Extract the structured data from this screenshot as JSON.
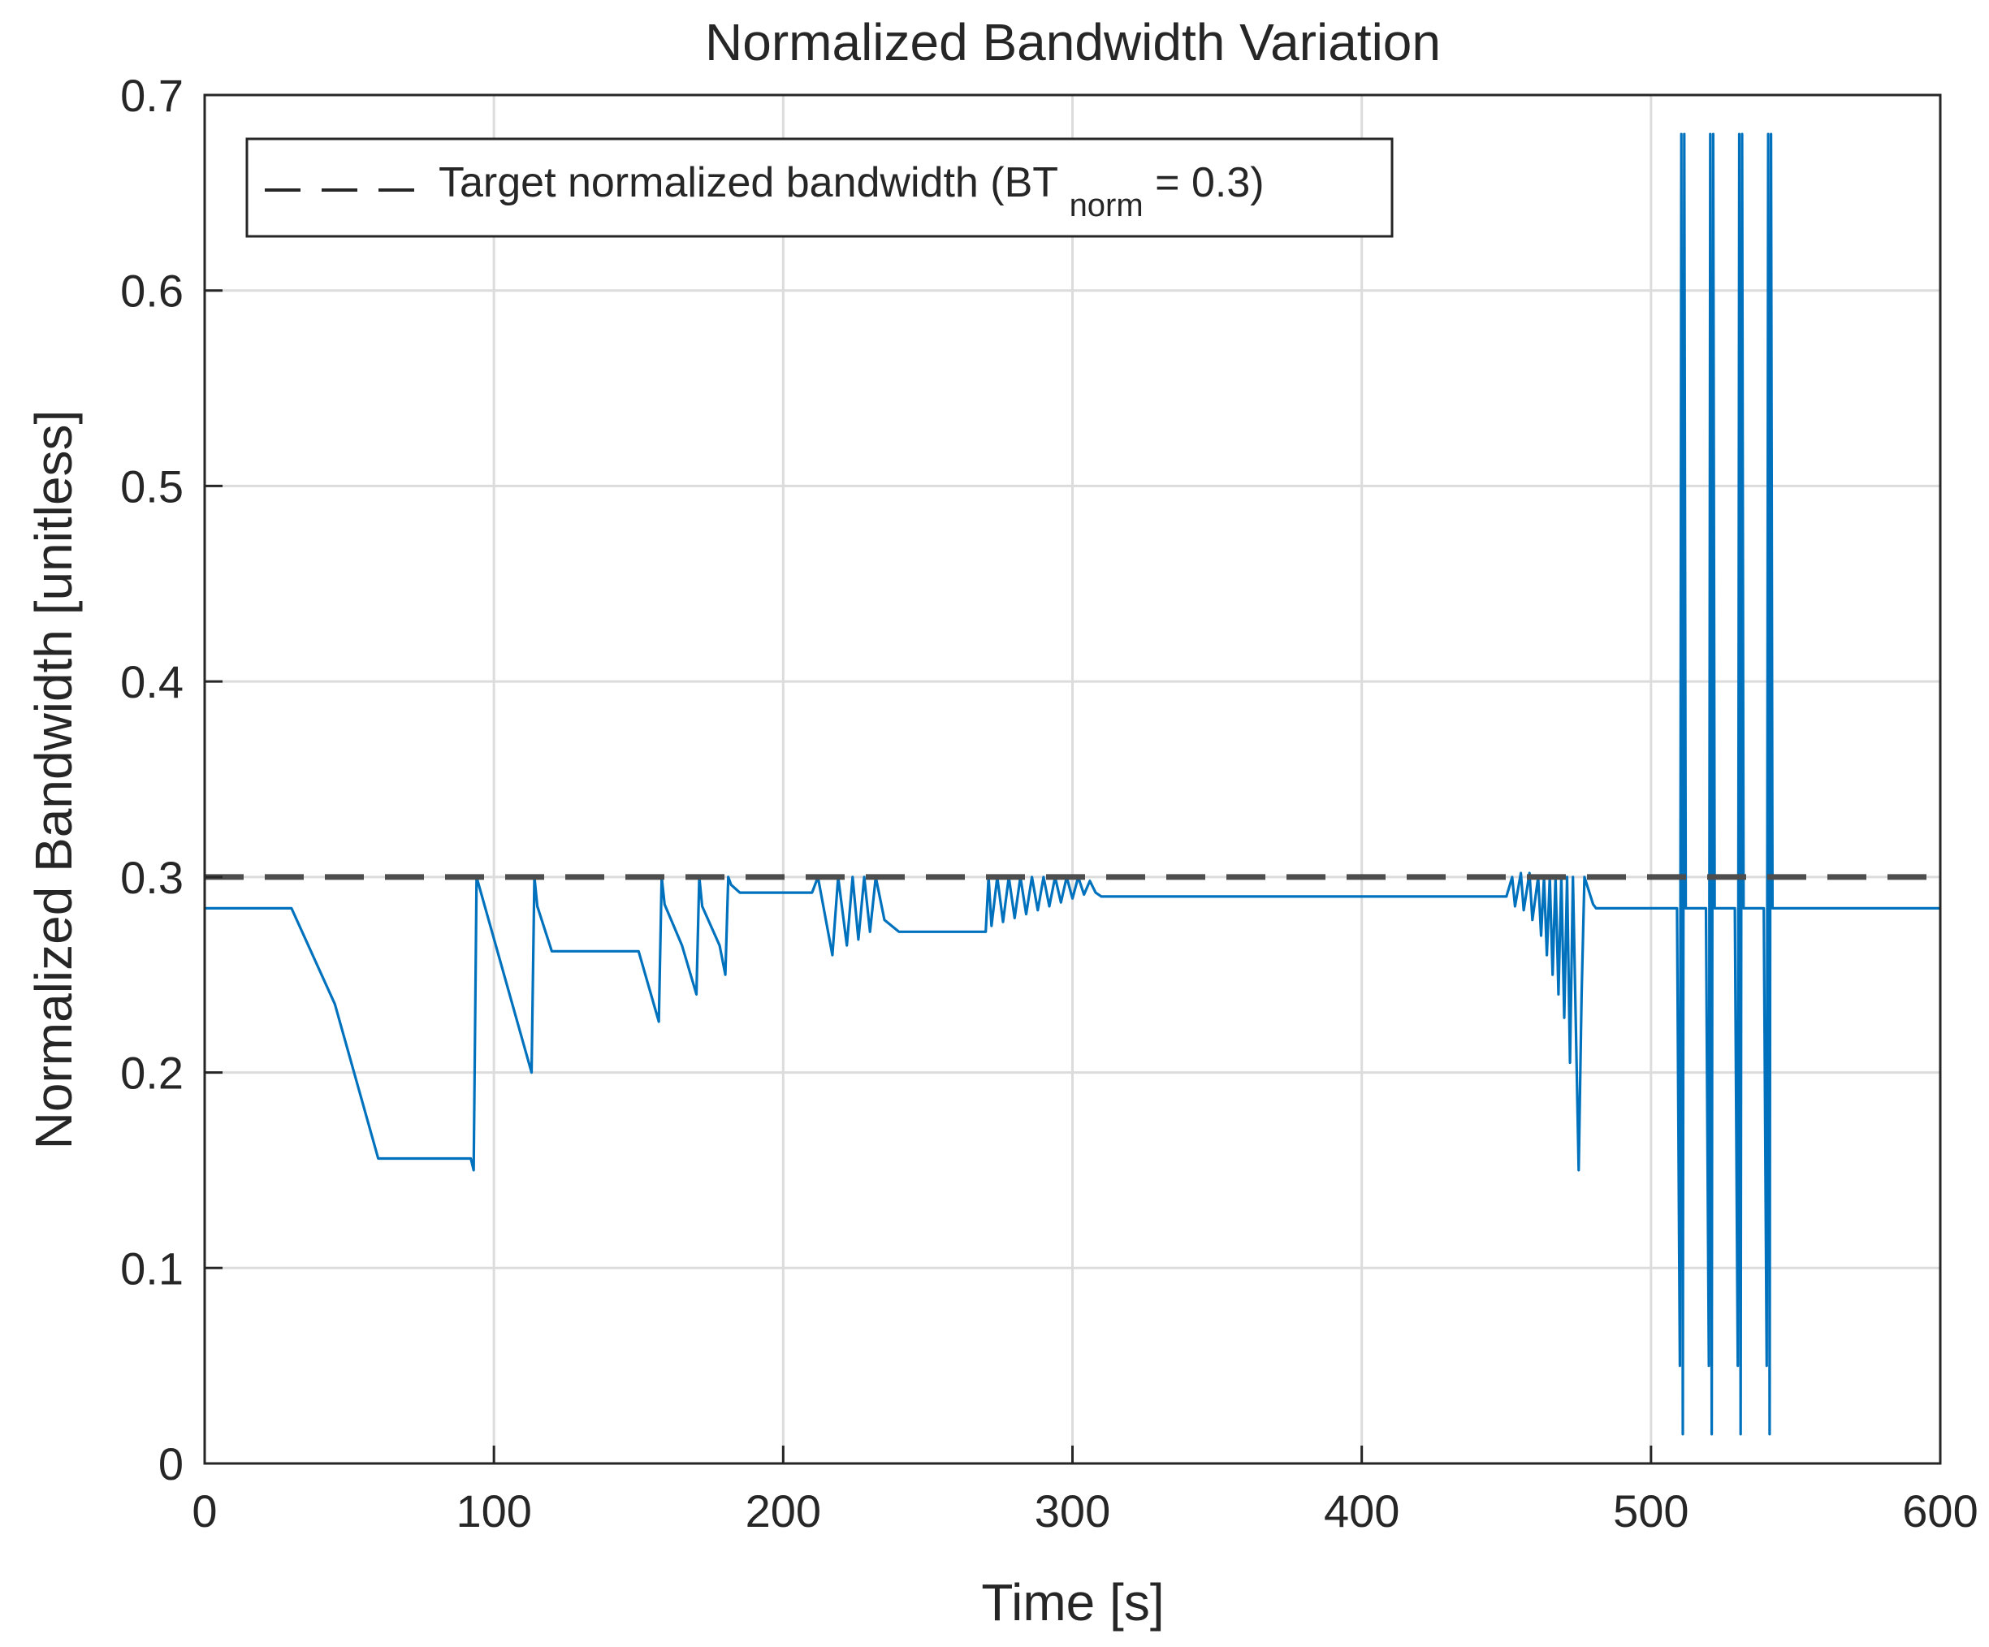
{
  "chart_data": {
    "type": "line",
    "title": "Normalized Bandwidth Variation",
    "xlabel": "Time [s]",
    "ylabel": "Normalized Bandwidth [unitless]",
    "xlim": [
      0,
      600
    ],
    "ylim": [
      0,
      0.7
    ],
    "xticks": [
      0,
      100,
      200,
      300,
      400,
      500,
      600
    ],
    "xtick_labels": [
      "0",
      "100",
      "200",
      "300",
      "400",
      "500",
      "600"
    ],
    "yticks": [
      0,
      0.1,
      0.2,
      0.3,
      0.4,
      0.5,
      0.6,
      0.7
    ],
    "ytick_labels": [
      "0",
      "0.1",
      "0.2",
      "0.3",
      "0.4",
      "0.5",
      "0.6",
      "0.7"
    ],
    "grid": true,
    "legend_position": "top-left",
    "legend": {
      "label_main": "Target normalized bandwidth (BT",
      "label_sub": "norm",
      "label_end": " = 0.3)"
    },
    "colors": {
      "series": "#0072BD",
      "reference": "#4d4d4d",
      "grid": "#dcdcdc",
      "axis": "#262626"
    },
    "series": [
      {
        "name": "Normalized bandwidth",
        "style": "solid",
        "x": [
          0,
          30,
          45,
          60,
          92,
          93,
          94,
          113,
          114,
          115,
          120,
          150,
          157,
          158,
          159,
          165,
          170,
          171,
          172,
          178,
          180,
          181,
          182,
          185,
          210,
          212,
          217,
          219,
          222,
          224,
          226,
          228,
          230,
          232,
          235,
          240,
          270,
          271,
          272,
          274,
          276,
          278,
          280,
          282,
          284,
          286,
          288,
          290,
          292,
          294,
          296,
          298,
          300,
          302,
          304,
          306,
          308,
          310,
          350,
          400,
          450,
          452,
          453,
          455,
          456,
          458,
          459,
          461,
          462,
          463,
          464,
          465,
          466,
          467,
          468,
          469,
          470,
          471,
          472,
          473,
          475,
          476,
          477,
          480,
          481,
          485,
          500,
          509,
          510,
          510.5,
          511,
          511.5,
          512,
          519,
          520,
          520.5,
          521,
          521.5,
          522,
          529,
          530,
          530.5,
          531,
          531.5,
          532,
          539,
          540,
          540.5,
          541,
          541.5,
          542,
          600
        ],
        "y": [
          0.284,
          0.284,
          0.235,
          0.156,
          0.156,
          0.15,
          0.3,
          0.2,
          0.3,
          0.285,
          0.262,
          0.262,
          0.226,
          0.3,
          0.286,
          0.265,
          0.24,
          0.3,
          0.285,
          0.265,
          0.25,
          0.3,
          0.296,
          0.292,
          0.292,
          0.3,
          0.26,
          0.3,
          0.265,
          0.3,
          0.268,
          0.3,
          0.272,
          0.3,
          0.278,
          0.272,
          0.272,
          0.3,
          0.275,
          0.3,
          0.277,
          0.3,
          0.279,
          0.3,
          0.281,
          0.3,
          0.283,
          0.3,
          0.285,
          0.3,
          0.287,
          0.3,
          0.289,
          0.3,
          0.291,
          0.298,
          0.292,
          0.29,
          0.29,
          0.29,
          0.29,
          0.3,
          0.285,
          0.302,
          0.283,
          0.302,
          0.278,
          0.3,
          0.27,
          0.3,
          0.26,
          0.3,
          0.25,
          0.3,
          0.24,
          0.3,
          0.228,
          0.3,
          0.205,
          0.3,
          0.15,
          0.24,
          0.3,
          0.286,
          0.284,
          0.284,
          0.284,
          0.284,
          0.05,
          0.68,
          0.015,
          0.68,
          0.284,
          0.284,
          0.05,
          0.68,
          0.015,
          0.68,
          0.284,
          0.284,
          0.05,
          0.68,
          0.015,
          0.68,
          0.284,
          0.284,
          0.05,
          0.68,
          0.015,
          0.68,
          0.284,
          0.284
        ]
      },
      {
        "name": "Target normalized bandwidth",
        "style": "dashed",
        "x": [
          0,
          600
        ],
        "y": [
          0.3,
          0.3
        ]
      }
    ]
  }
}
